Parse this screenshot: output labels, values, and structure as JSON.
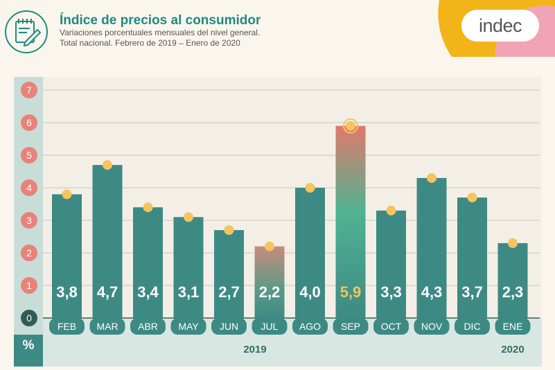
{
  "header": {
    "title": "Índice de precios al consumidor",
    "subtitle_line1": "Variaciones porcentuales mensuales del nivel general.",
    "subtitle_line2": "Total nacional. Febrero de 2019 – Enero de 2020",
    "logo_text": "indec"
  },
  "colors": {
    "bar": "#3d8a84",
    "highlight_top": "#e07a6c",
    "highlight_mid": "#4fb391",
    "dot": "#f5c45e",
    "axis_strip": "#c9ddd8",
    "tick_circle": "#e8827a",
    "accent_teal": "#1f8a80",
    "corner_yellow": "#f2b418",
    "corner_pink": "#f0a4b5"
  },
  "icons": {
    "header": "document-pencil-icon",
    "point": "dot-icon"
  },
  "chart_data": {
    "type": "bar",
    "categories": [
      "FEB",
      "MAR",
      "ABR",
      "MAY",
      "JUN",
      "JUL",
      "AGO",
      "SEP",
      "OCT",
      "NOV",
      "DIC",
      "ENE"
    ],
    "values": [
      3.8,
      4.7,
      3.4,
      3.1,
      2.7,
      2.2,
      4.0,
      5.9,
      3.3,
      4.3,
      3.7,
      2.3
    ],
    "value_labels": [
      "3,8",
      "4,7",
      "3,4",
      "3,1",
      "2,7",
      "2,2",
      "4,0",
      "5,9",
      "3,3",
      "4,3",
      "3,7",
      "2,3"
    ],
    "highlighted": [
      "JUL",
      "SEP"
    ],
    "ylim": [
      0,
      7
    ],
    "yticks": [
      "0",
      "1",
      "2",
      "3",
      "4",
      "5",
      "6",
      "7"
    ],
    "y_unit": "%",
    "year_labels": [
      "2019",
      "2020"
    ],
    "grid": true
  }
}
